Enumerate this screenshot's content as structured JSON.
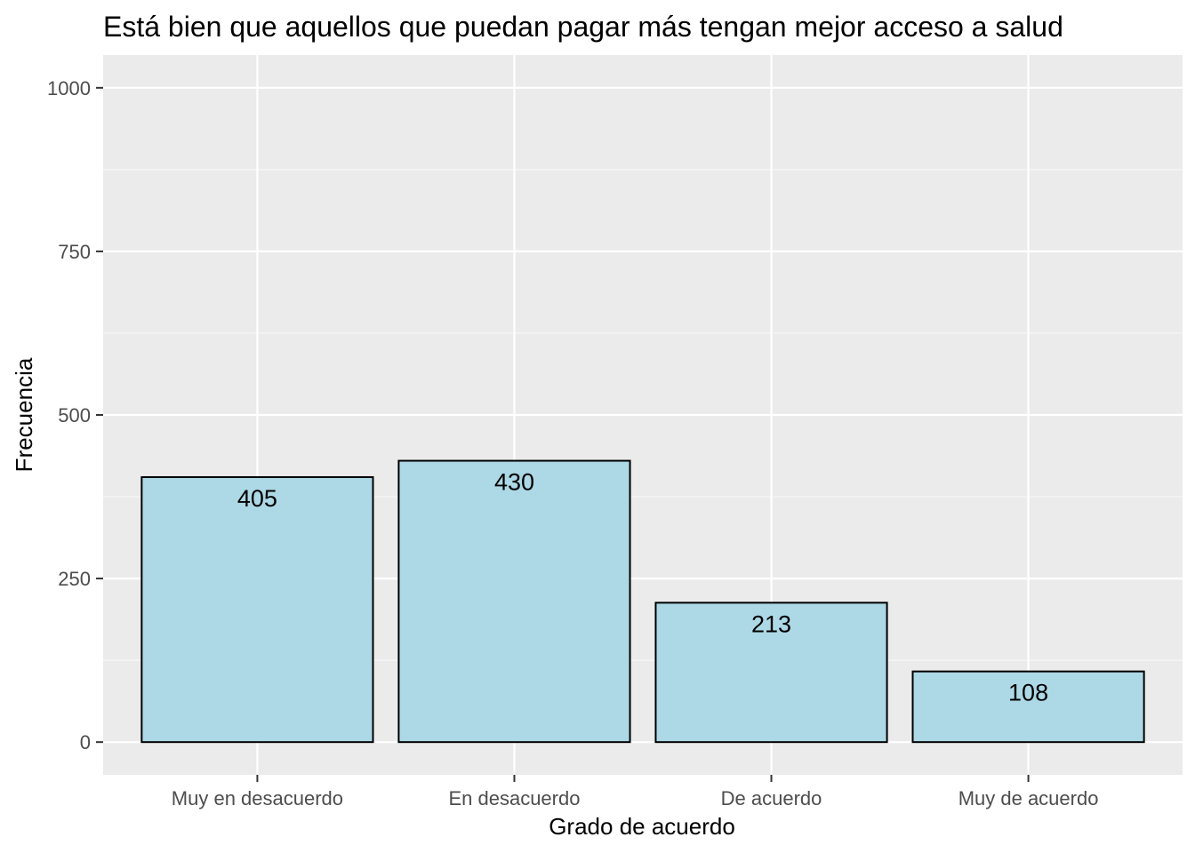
{
  "chart_data": {
    "type": "bar",
    "title": "Está bien que aquellos que puedan pagar más tengan mejor acceso a salud",
    "xlabel": "Grado de acuerdo",
    "ylabel": "Frecuencia",
    "categories": [
      "Muy en desacuerdo",
      "En desacuerdo",
      "De acuerdo",
      "Muy de acuerdo"
    ],
    "values": [
      405,
      430,
      213,
      108
    ],
    "data_labels": [
      "405",
      "430",
      "213",
      "108"
    ],
    "y_ticks": [
      0,
      250,
      500,
      750,
      1000
    ],
    "y_tick_labels": [
      "0",
      "250",
      "500",
      "750",
      "1000"
    ],
    "ylim": [
      -50,
      1050
    ],
    "grid": true,
    "legend": "none",
    "colors": {
      "bar_fill": "#add8e6",
      "bar_stroke": "#000000",
      "panel_background": "#ebebeb",
      "grid_major": "#ffffff",
      "grid_minor": "#f7f7f7",
      "tick_text": "#4d4d4d"
    }
  }
}
